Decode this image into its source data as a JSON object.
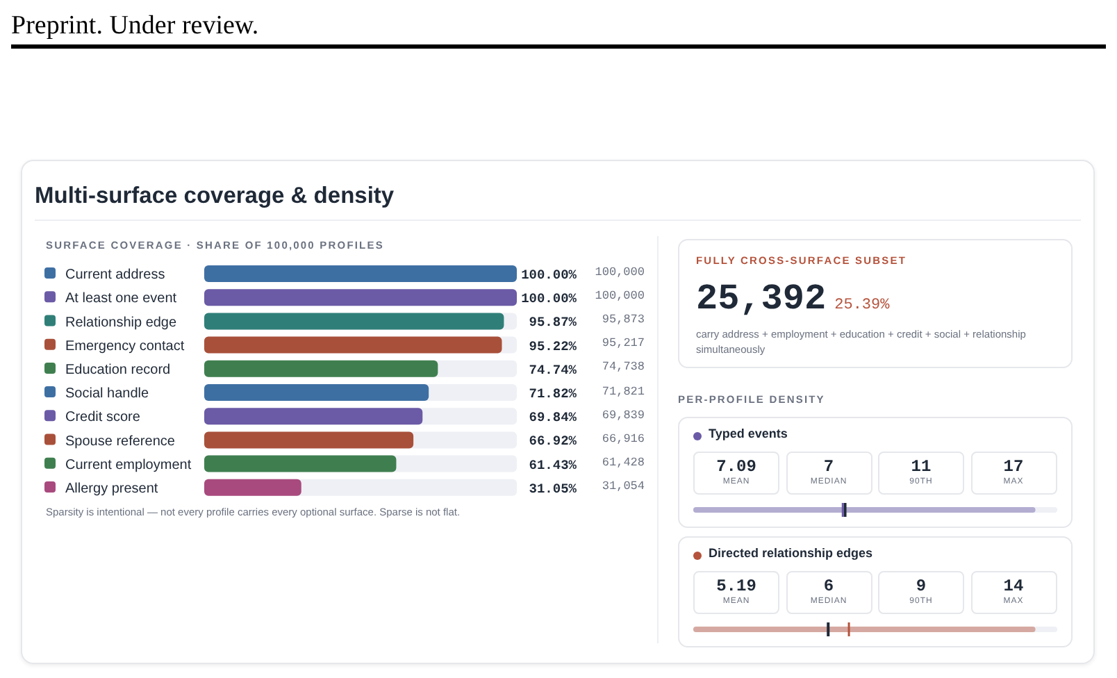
{
  "chart_data": [
    {
      "type": "bar",
      "orientation": "horizontal",
      "title": "Multi-surface coverage & density",
      "subtitle": "SURFACE COVERAGE · SHARE OF 100,000 PROFILES",
      "categories": [
        "Current address",
        "At least one event",
        "Relationship edge",
        "Emergency contact",
        "Education record",
        "Social handle",
        "Credit score",
        "Spouse reference",
        "Current employment",
        "Allergy present"
      ],
      "values": [
        100,
        100,
        95.87,
        95.22,
        74.74,
        71.82,
        69.84,
        66.92,
        61.43,
        31.05
      ],
      "colors": [
        "#3e6fa3",
        "#6b5aa6",
        "#2f7f78",
        "#a9503a",
        "#3f7f4f",
        "#3e6fa3",
        "#6b5aa6",
        "#a9503a",
        "#3f7f4f",
        "#a84a7e"
      ],
      "value_labels": [
        "100.00%",
        "100.00%",
        "95.87%",
        "95.22%",
        "74.74%",
        "71.82%",
        "69.84%",
        "66.92%",
        "61.43%",
        "31.05%"
      ],
      "xlim": [
        0,
        100
      ],
      "tick_labels": "y",
      "annotations": [
        "Preprint. Under review.",
        "Sparsity is intentional — not every profile carries every optional surface. Sparse is not flat.",
        "100,000",
        "100,000",
        "95,873",
        "95,217",
        "74,738",
        "71,821",
        "69,839",
        "66,916",
        "61,428",
        "31,054"
      ]
    },
    {
      "type": "other",
      "title": "FULLY CROSS-SURFACE SUBSET",
      "annotations": [
        "25,392",
        "25.39%",
        "carry address + employment + education + credit + social + relationship simultaneously",
        "PER-PROFILE DENSITY"
      ],
      "categories": [
        "MEAN",
        "MEDIAN",
        "90TH",
        "MAX"
      ],
      "data_labels": true,
      "series": [
        {
          "name": "Typed events",
          "color": "#6b5aa6",
          "values": [
            7.09,
            7,
            11,
            17
          ]
        },
        {
          "name": "Directed relationship edges",
          "color": "#b5533c",
          "values": [
            5.19,
            6,
            9,
            14
          ]
        }
      ]
    }
  ]
}
